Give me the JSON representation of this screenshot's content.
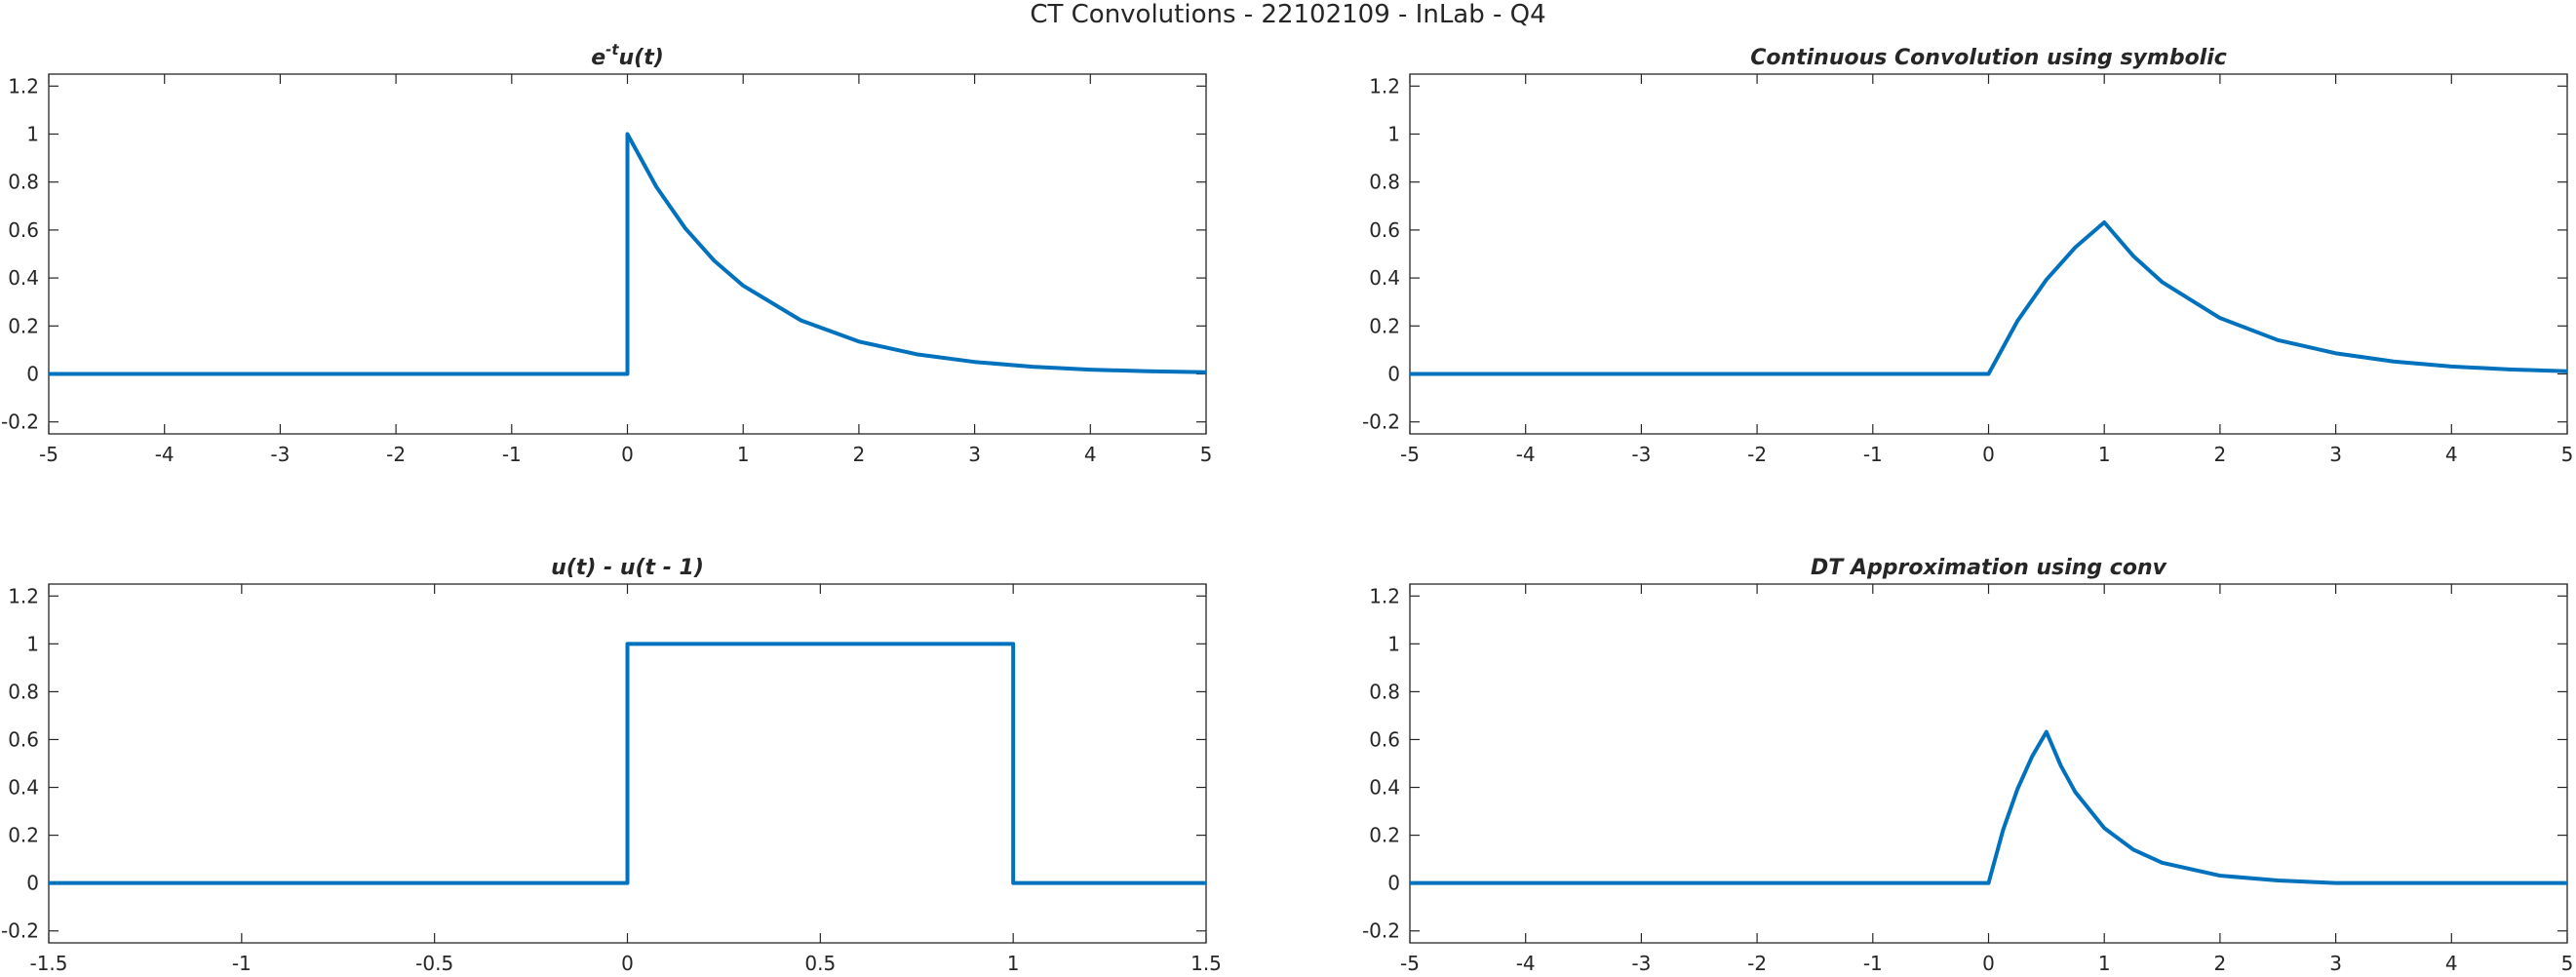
{
  "figure": {
    "suptitle": "CT Convolutions - 22102109 - InLab - Q4"
  },
  "colors": {
    "line": "#0072bd",
    "axis": "#262626",
    "background": "#ffffff"
  },
  "chart_data": [
    {
      "type": "line",
      "title": {
        "base": "e",
        "sup": "-t",
        "rest": "u(t)"
      },
      "xlim": [
        -5,
        5
      ],
      "ylim": [
        -0.25,
        1.25
      ],
      "xticks": [
        -5,
        -4,
        -3,
        -2,
        -1,
        0,
        1,
        2,
        3,
        4,
        5
      ],
      "yticks": [
        -0.2,
        0,
        0.2,
        0.4,
        0.6,
        0.8,
        1,
        1.2
      ],
      "ytick_labels": [
        "-0.2",
        "0",
        "0.2",
        "0.4",
        "0.6",
        "0.8",
        "1",
        "1.2"
      ],
      "grid": false,
      "x": [
        -5,
        0,
        0,
        0.25,
        0.5,
        0.75,
        1,
        1.5,
        2,
        2.5,
        3,
        3.5,
        4,
        4.5,
        5
      ],
      "y": [
        0,
        0,
        1,
        0.78,
        0.607,
        0.472,
        0.368,
        0.223,
        0.135,
        0.082,
        0.05,
        0.03,
        0.018,
        0.011,
        0.007
      ]
    },
    {
      "type": "line",
      "title": "Continuous Convolution using symbolic",
      "xlim": [
        -5,
        5
      ],
      "ylim": [
        -0.25,
        1.25
      ],
      "xticks": [
        -5,
        -4,
        -3,
        -2,
        -1,
        0,
        1,
        2,
        3,
        4,
        5
      ],
      "yticks": [
        -0.2,
        0,
        0.2,
        0.4,
        0.6,
        0.8,
        1,
        1.2
      ],
      "ytick_labels": [
        "-0.2",
        "0",
        "0.2",
        "0.4",
        "0.6",
        "0.8",
        "1",
        "1.2"
      ],
      "grid": false,
      "x": [
        -5,
        0,
        0.25,
        0.5,
        0.75,
        1,
        1.25,
        1.5,
        2,
        2.5,
        3,
        3.5,
        4,
        4.5,
        5
      ],
      "y": [
        0,
        0,
        0.221,
        0.393,
        0.528,
        0.632,
        0.492,
        0.383,
        0.233,
        0.141,
        0.086,
        0.052,
        0.031,
        0.019,
        0.011
      ]
    },
    {
      "type": "line",
      "title": "u(t) - u(t - 1)",
      "xlim": [
        -1.5,
        1.5
      ],
      "ylim": [
        -0.25,
        1.25
      ],
      "xticks": [
        -1.5,
        -1,
        -0.5,
        0,
        0.5,
        1,
        1.5
      ],
      "yticks": [
        -0.2,
        0,
        0.2,
        0.4,
        0.6,
        0.8,
        1,
        1.2
      ],
      "ytick_labels": [
        "-0.2",
        "0",
        "0.2",
        "0.4",
        "0.6",
        "0.8",
        "1",
        "1.2"
      ],
      "grid": false,
      "x": [
        -1.5,
        0,
        0,
        1,
        1,
        1.5
      ],
      "y": [
        0,
        0,
        1,
        1,
        0,
        0
      ]
    },
    {
      "type": "line",
      "title": "DT Approximation using conv",
      "xlim": [
        -5,
        5
      ],
      "ylim": [
        -0.25,
        1.25
      ],
      "xticks": [
        -5,
        -4,
        -3,
        -2,
        -1,
        0,
        1,
        2,
        3,
        4,
        5
      ],
      "yticks": [
        -0.2,
        0,
        0.2,
        0.4,
        0.6,
        0.8,
        1,
        1.2
      ],
      "ytick_labels": [
        "-0.2",
        "0",
        "0.2",
        "0.4",
        "0.6",
        "0.8",
        "1",
        "1.2"
      ],
      "grid": false,
      "x": [
        -5,
        0,
        0.125,
        0.25,
        0.375,
        0.5,
        0.625,
        0.75,
        1,
        1.25,
        1.5,
        2,
        2.5,
        3,
        3.5,
        4,
        5
      ],
      "y": [
        0,
        0,
        0.221,
        0.393,
        0.528,
        0.632,
        0.49,
        0.38,
        0.23,
        0.14,
        0.085,
        0.031,
        0.011,
        0,
        0,
        0,
        0
      ]
    }
  ]
}
